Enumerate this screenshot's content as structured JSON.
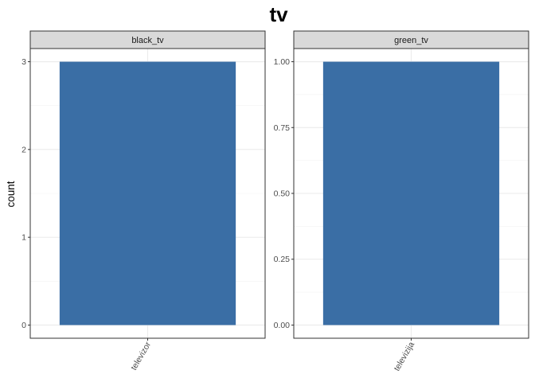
{
  "chart_data": {
    "type": "bar",
    "title": "tv",
    "ylabel": "count",
    "xlabel": "",
    "bar_color": "#3A6EA5",
    "strip_fill": "#D9D9D9",
    "grid": true,
    "facets": [
      {
        "strip_label": "black_tv",
        "categories": [
          "televizor"
        ],
        "values": [
          3
        ],
        "ylim": [
          -0.15,
          3.15
        ],
        "yticks": [
          0,
          1,
          2,
          3
        ],
        "ytick_labels": [
          "0",
          "1",
          "2",
          "3"
        ]
      },
      {
        "strip_label": "green_tv",
        "categories": [
          "televizija"
        ],
        "values": [
          1
        ],
        "ylim": [
          -0.05,
          1.05
        ],
        "yticks": [
          0,
          0.25,
          0.5,
          0.75,
          1
        ],
        "ytick_labels": [
          "0.00",
          "0.25",
          "0.50",
          "0.75",
          "1.00"
        ]
      }
    ]
  }
}
